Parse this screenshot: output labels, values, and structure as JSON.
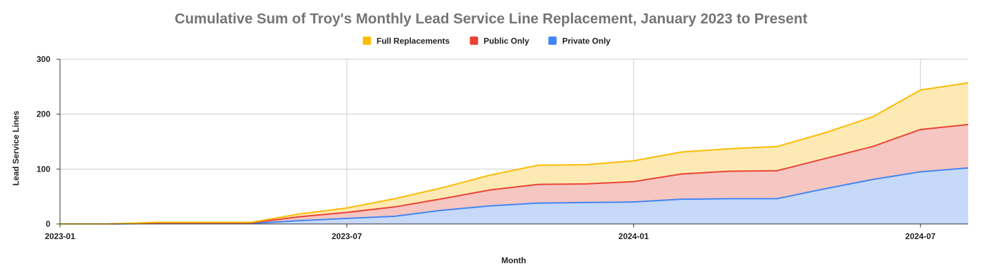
{
  "chart_data": {
    "type": "area",
    "stacked": true,
    "title": "Cumulative Sum of Troy's Monthly Lead Service Line Replacement, January 2023 to Present",
    "xlabel": "Month",
    "ylabel": "Lead Service Lines",
    "ylim": [
      0,
      300
    ],
    "yticks": [
      0,
      100,
      200,
      300
    ],
    "xtick_labels": [
      "2023-01",
      "2023-07",
      "2024-01",
      "2024-07"
    ],
    "x": [
      "2023-01",
      "2023-02",
      "2023-03",
      "2023-04",
      "2023-05",
      "2023-06",
      "2023-07",
      "2023-08",
      "2023-09",
      "2023-10",
      "2023-11",
      "2023-12",
      "2024-01",
      "2024-02",
      "2024-03",
      "2024-04",
      "2024-05",
      "2024-06",
      "2024-07",
      "2024-08"
    ],
    "legend_position": "top",
    "grid": true,
    "series": [
      {
        "name": "Private Only",
        "color": "#4285f4",
        "fill": "#c6d9f8",
        "values": [
          0,
          0,
          1,
          1,
          1,
          6,
          10,
          14,
          25,
          33,
          38,
          39,
          40,
          45,
          46,
          46,
          64,
          81,
          95,
          102
        ]
      },
      {
        "name": "Public Only",
        "color": "#ea4335",
        "fill": "#f5c6c2",
        "values": [
          0,
          0,
          1,
          1,
          1,
          7,
          11,
          17,
          21,
          29,
          34,
          34,
          37,
          46,
          50,
          51,
          55,
          60,
          77,
          79
        ]
      },
      {
        "name": "Full Replacements",
        "color": "#fbbc04",
        "fill": "#fde9b3",
        "values": [
          0,
          0,
          1,
          1,
          1,
          5,
          8,
          15,
          20,
          27,
          35,
          35,
          38,
          40,
          41,
          44,
          47,
          54,
          72,
          76
        ]
      }
    ],
    "legend_order": [
      "Full Replacements",
      "Public Only",
      "Private Only"
    ]
  }
}
